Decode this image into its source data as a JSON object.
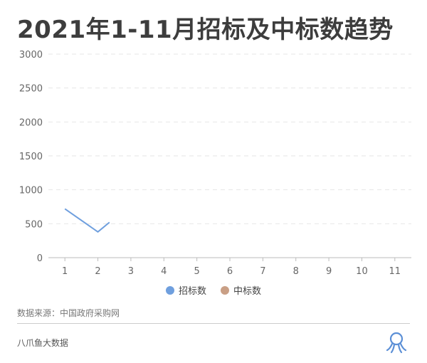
{
  "title": "2021年1-11月招标及中标数趋势",
  "source": "数据来源：中国政府采购网",
  "brand": "八爪鱼大数据",
  "logo_icon": "octopus-icon",
  "chart_data": {
    "type": "line",
    "title": "2021年1-11月招标及中标数趋势",
    "x": [
      1,
      2,
      3,
      4,
      5,
      6,
      7,
      8,
      9,
      10,
      11
    ],
    "x_tick_labels": [
      "1",
      "2",
      "3",
      "4",
      "5",
      "6",
      "7",
      "8",
      "9",
      "10",
      "11"
    ],
    "y_ticks": [
      0,
      500,
      1000,
      1500,
      2000,
      2500,
      3000
    ],
    "ylim": [
      0,
      3000
    ],
    "xlim": [
      0.5,
      11.5
    ],
    "grid": true,
    "legend_position": "bottom",
    "series": [
      {
        "name": "招标数",
        "color": "#6f9fde",
        "points": [
          [
            1,
            720
          ],
          [
            2,
            380
          ],
          [
            2.35,
            520
          ]
        ]
      },
      {
        "name": "中标数",
        "color": "#c99f85",
        "points": []
      }
    ]
  }
}
